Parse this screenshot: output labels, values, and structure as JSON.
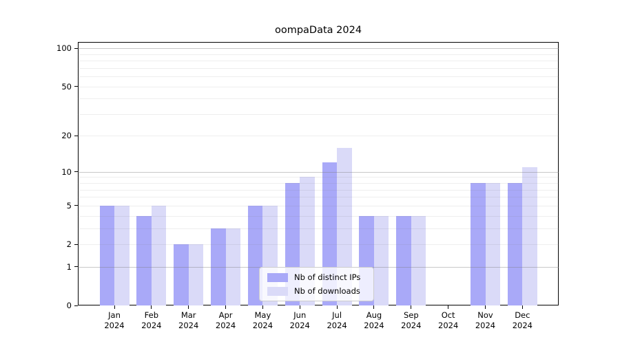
{
  "title": "oompaData 2024",
  "chart_data": {
    "type": "bar",
    "title": "oompaData 2024",
    "categories": [
      "Jan",
      "Feb",
      "Mar",
      "Apr",
      "May",
      "Jun",
      "Jul",
      "Aug",
      "Sep",
      "Oct",
      "Nov",
      "Dec"
    ],
    "year": "2024",
    "series": [
      {
        "name": "Nb of distinct IPs",
        "color": "#a9a9f8",
        "values": [
          5,
          4,
          2,
          3,
          5,
          8,
          12,
          4,
          4,
          0,
          8,
          8
        ]
      },
      {
        "name": "Nb of downloads",
        "color": "#dadaf8",
        "values": [
          5,
          5,
          2,
          3,
          5,
          9,
          16,
          4,
          4,
          0,
          8,
          11
        ]
      }
    ],
    "yscale": "log1p",
    "yticks": [
      0,
      1,
      2,
      5,
      10,
      20,
      50,
      100
    ],
    "ytick_labels": [
      "0",
      "1",
      "2",
      "5",
      "10",
      "20",
      "50",
      "100"
    ],
    "major_gridlines": [
      1,
      10,
      100
    ],
    "minor_gridlines": [
      2,
      3,
      4,
      5,
      6,
      7,
      8,
      9,
      20,
      30,
      40,
      50,
      60,
      70,
      80,
      90
    ],
    "ylim": [
      0,
      113
    ],
    "xlabel": "",
    "ylabel": "",
    "grid": true,
    "legend_position": "lower center"
  },
  "colors": {
    "background": "#ffffff",
    "axis": "#000000",
    "text": "#000000",
    "bar_ips": "#a9a9f8",
    "bar_downloads": "#dadaf8",
    "legend_border": "#cccccc"
  }
}
